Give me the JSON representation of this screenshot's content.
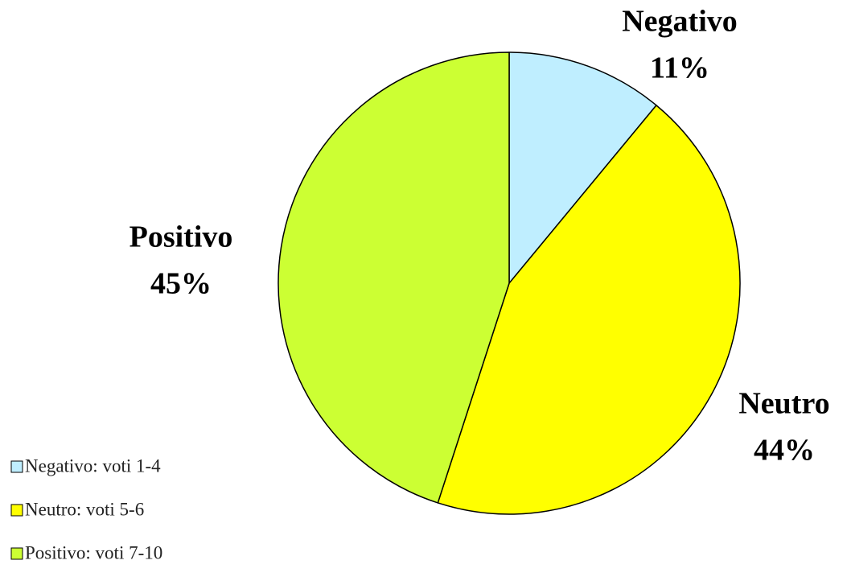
{
  "chart_data": {
    "type": "pie",
    "categories": [
      "Negativo",
      "Neutro",
      "Positivo"
    ],
    "values": [
      11,
      44,
      45
    ],
    "value_labels": [
      "11%",
      "44%",
      "45%"
    ],
    "legend": [
      "Negativo: voti 1-4",
      "Neutro: voti 5-6",
      "Positivo: voti 7-10"
    ],
    "colors": [
      "#bfeeff",
      "#ffff00",
      "#ccff33"
    ],
    "legend_position": "bottom-left"
  }
}
